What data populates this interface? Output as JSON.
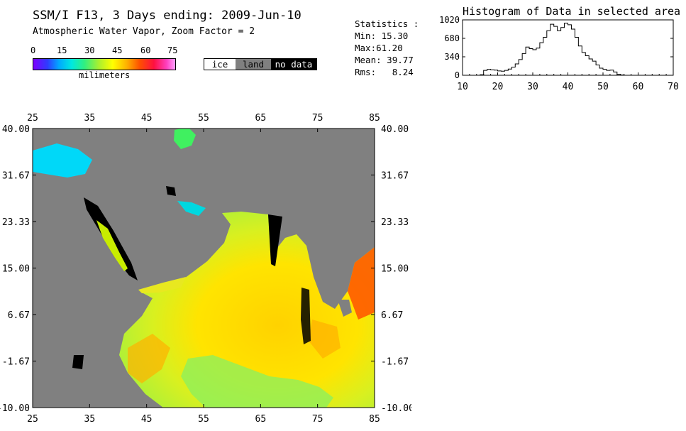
{
  "header": {
    "title": "SSM/I F13, 3 Days ending: 2009-Jun-10",
    "subtitle": "Atmospheric Water Vapor,  Zoom Factor = 2"
  },
  "colorbar": {
    "ticks": [
      "0",
      "15",
      "30",
      "45",
      "60",
      "75"
    ],
    "tick_values": [
      0,
      15,
      30,
      45,
      60,
      75
    ],
    "min": 0,
    "max": 75,
    "unit_label": "milimeters"
  },
  "legend": {
    "ice": "ice",
    "land": "land",
    "no_data": "no data"
  },
  "statistics": {
    "title": "Statistics :",
    "min_label": "Min:",
    "min": "15.30",
    "max_label": "Max:",
    "max": "61.20",
    "mean_label": "Mean:",
    "mean": "39.77",
    "rms_label": "Rms:",
    "rms": "8.24"
  },
  "histogram": {
    "title": "Histogram of Data in selected area",
    "xlim": [
      10,
      70
    ],
    "ylim": [
      0,
      1020
    ],
    "x_ticks": [
      "10",
      "20",
      "30",
      "40",
      "50",
      "60",
      "70"
    ],
    "x_tick_values": [
      10,
      20,
      30,
      40,
      50,
      60,
      70
    ],
    "y_ticks": [
      "1020",
      "680",
      "340",
      "0"
    ],
    "y_tick_values": [
      1020,
      680,
      340,
      0
    ],
    "bins": [
      15,
      16,
      17,
      18,
      19,
      20,
      21,
      22,
      23,
      24,
      25,
      26,
      27,
      28,
      29,
      30,
      31,
      32,
      33,
      34,
      35,
      36,
      37,
      38,
      39,
      40,
      41,
      42,
      43,
      44,
      45,
      46,
      47,
      48,
      49,
      50,
      51,
      52,
      53,
      54,
      55,
      56,
      57,
      58,
      59,
      60
    ],
    "counts": [
      10,
      90,
      110,
      100,
      95,
      80,
      75,
      90,
      115,
      150,
      210,
      290,
      400,
      520,
      490,
      470,
      500,
      600,
      700,
      820,
      940,
      900,
      820,
      880,
      960,
      930,
      850,
      700,
      540,
      420,
      360,
      300,
      260,
      190,
      130,
      110,
      90,
      95,
      60,
      20,
      5,
      0,
      0,
      0,
      0,
      0
    ]
  },
  "map": {
    "x_ticks": [
      "25",
      "35",
      "45",
      "55",
      "65",
      "75",
      "85"
    ],
    "x_tick_values": [
      25,
      35,
      45,
      55,
      65,
      75,
      85
    ],
    "y_ticks": [
      "40.00",
      "31.67",
      "23.33",
      "15.00",
      "6.67",
      "-1.67",
      "-10.00"
    ],
    "y_tick_values": [
      40,
      31.67,
      23.33,
      15,
      6.67,
      -1.67,
      -10
    ],
    "lon_range": [
      25,
      85
    ],
    "lat_range": [
      -10,
      40
    ],
    "colors": {
      "land": "#808080",
      "no_data": "#000000"
    }
  }
}
